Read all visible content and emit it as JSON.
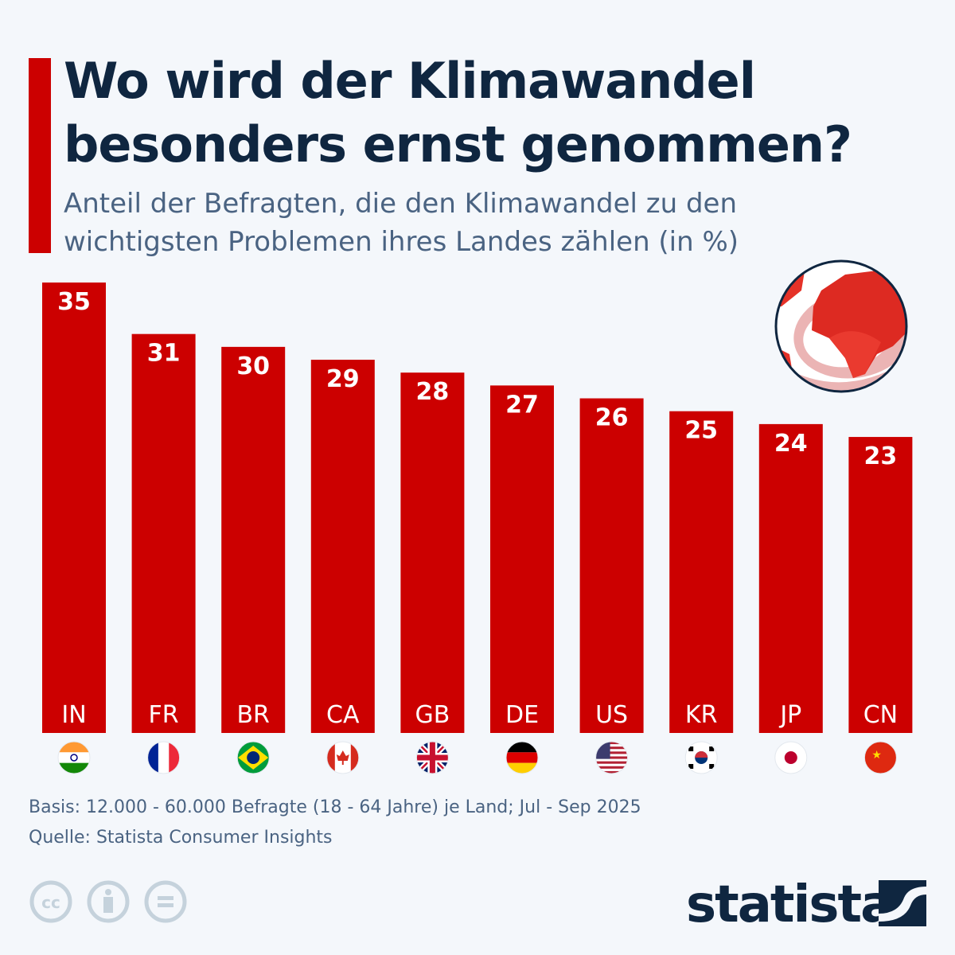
{
  "header": {
    "title": "Wo wird der Klimawandel besonders ernst genommen?",
    "subtitle": "Anteil der Befragten, die den Klimawandel zu den wichtigsten Problemen ihres Landes zählen (in %)"
  },
  "chart_data": {
    "type": "bar",
    "categories": [
      "IN",
      "FR",
      "BR",
      "CA",
      "GB",
      "DE",
      "US",
      "KR",
      "JP",
      "CN"
    ],
    "values": [
      35,
      31,
      30,
      29,
      28,
      27,
      26,
      25,
      24,
      23
    ],
    "title": "Wo wird der Klimawandel besonders ernst genommen?",
    "subtitle": "Anteil der Befragten, die den Klimawandel zu den wichtigsten Problemen ihres Landes zählen (in %)",
    "xlabel": "",
    "ylabel": "",
    "ylim": [
      0,
      35
    ],
    "grid": false,
    "data_labels": true,
    "bar_color": "#cc0000"
  },
  "flags": [
    "india-flag-icon",
    "france-flag-icon",
    "brazil-flag-icon",
    "canada-flag-icon",
    "uk-flag-icon",
    "germany-flag-icon",
    "usa-flag-icon",
    "korea-flag-icon",
    "japan-flag-icon",
    "china-flag-icon"
  ],
  "footer": {
    "basis": "Basis: 12.000 - 60.000 Befragte (18 - 64 Jahre) je Land; Jul - Sep 2025",
    "source": "Quelle: Statista Consumer Insights",
    "license_icons": [
      "cc-icon",
      "attribution-icon",
      "no-derivatives-icon"
    ],
    "logo": "statista"
  },
  "colors": {
    "accent": "#cc0000",
    "title": "#0f2640",
    "text": "#4a6382",
    "background": "#f4f7fb"
  }
}
